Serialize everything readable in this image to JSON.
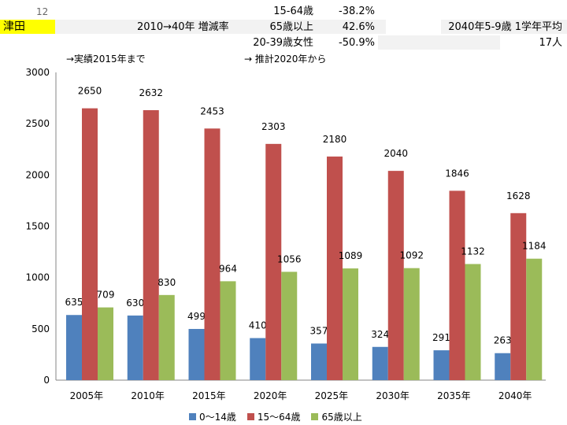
{
  "header": {
    "row_number": "12",
    "area_name": "津田",
    "rate_title": "2010→40年 増減率",
    "rates": [
      {
        "label": "15-64歳",
        "value": "-38.2%"
      },
      {
        "label": "65歳以上",
        "value": "42.6%"
      },
      {
        "label": "20-39歳女性",
        "value": "-50.9%"
      }
    ],
    "avg_title": "2040年5-9歳 1学年平均",
    "avg_value": "17人",
    "note_actual": "→実績2015年まで",
    "note_estimate": "→ 推計2020年から"
  },
  "colors": {
    "series_0": "#4f81bd",
    "series_1": "#c0504d",
    "series_2": "#9bbb59",
    "highlight": "#ffff00"
  },
  "chart_data": {
    "type": "bar",
    "categories": [
      "2005年",
      "2010年",
      "2015年",
      "2020年",
      "2025年",
      "2030年",
      "2035年",
      "2040年"
    ],
    "series": [
      {
        "name": "0～14歳",
        "values": [
          635,
          630,
          499,
          410,
          357,
          324,
          291,
          263
        ]
      },
      {
        "name": "15～64歳",
        "values": [
          2650,
          2632,
          2453,
          2303,
          2180,
          2040,
          1846,
          1628
        ]
      },
      {
        "name": "65歳以上",
        "values": [
          709,
          830,
          964,
          1056,
          1089,
          1092,
          1132,
          1184
        ]
      }
    ],
    "ylim": [
      0,
      3000
    ],
    "yticks": [
      "0",
      "500",
      "1000",
      "1500",
      "2000",
      "2500",
      "3000"
    ],
    "grid": false,
    "legend": "bottom"
  }
}
